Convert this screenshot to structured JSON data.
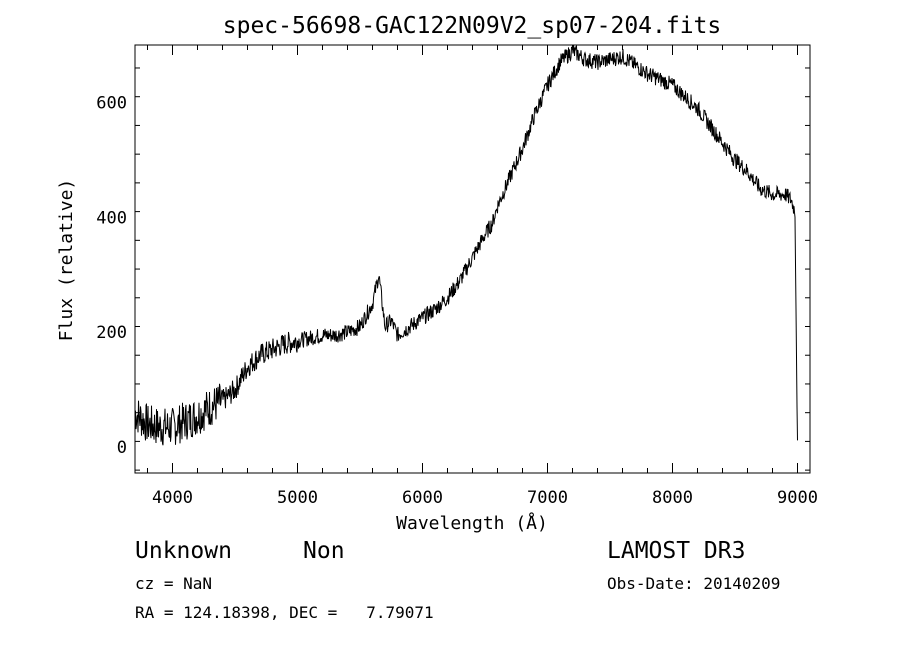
{
  "chart_data": {
    "type": "line",
    "title": "spec-56698-GAC122N09V2_sp07-204.fits",
    "xlabel": "Wavelength (Å)",
    "ylabel": "Flux (relative)",
    "xlim": [
      3700,
      9100
    ],
    "ylim": [
      -45,
      700
    ],
    "x_ticks": [
      4000,
      5000,
      6000,
      7000,
      8000,
      9000
    ],
    "y_ticks": [
      0,
      200,
      400,
      600
    ],
    "grid": false,
    "line_color": "#000000",
    "series": [
      {
        "x": [
          3700,
          3800,
          3900,
          4000,
          4100,
          4200,
          4300,
          4400,
          4500,
          4600,
          4700,
          4800,
          4900,
          5000,
          5100,
          5200,
          5300,
          5400,
          5500,
          5600,
          5650,
          5700,
          5750,
          5800,
          5900,
          6000,
          6100,
          6200,
          6300,
          6400,
          6500,
          6560,
          6600,
          6700,
          6800,
          6900,
          7000,
          7100,
          7200,
          7300,
          7400,
          7500,
          7600,
          7700,
          7800,
          7900,
          8000,
          8100,
          8200,
          8300,
          8400,
          8500,
          8600,
          8700,
          8800,
          8900,
          8950,
          8980,
          9000
        ],
        "y": [
          60,
          40,
          35,
          35,
          45,
          55,
          70,
          80,
          100,
          140,
          160,
          170,
          180,
          185,
          190,
          195,
          195,
          200,
          210,
          250,
          300,
          210,
          220,
          195,
          210,
          225,
          240,
          260,
          290,
          330,
          370,
          390,
          420,
          470,
          520,
          580,
          630,
          670,
          690,
          675,
          670,
          675,
          680,
          665,
          650,
          640,
          630,
          610,
          590,
          560,
          530,
          500,
          480,
          450,
          440,
          440,
          430,
          410,
          0
        ]
      }
    ]
  },
  "info": {
    "object_class": "Unknown",
    "object_subclass": "Non",
    "survey": "LAMOST DR3",
    "cz": "cz = NaN",
    "obs_date": "Obs-Date: 20140209",
    "coords": "RA = 124.18398, DEC =   7.79071"
  }
}
